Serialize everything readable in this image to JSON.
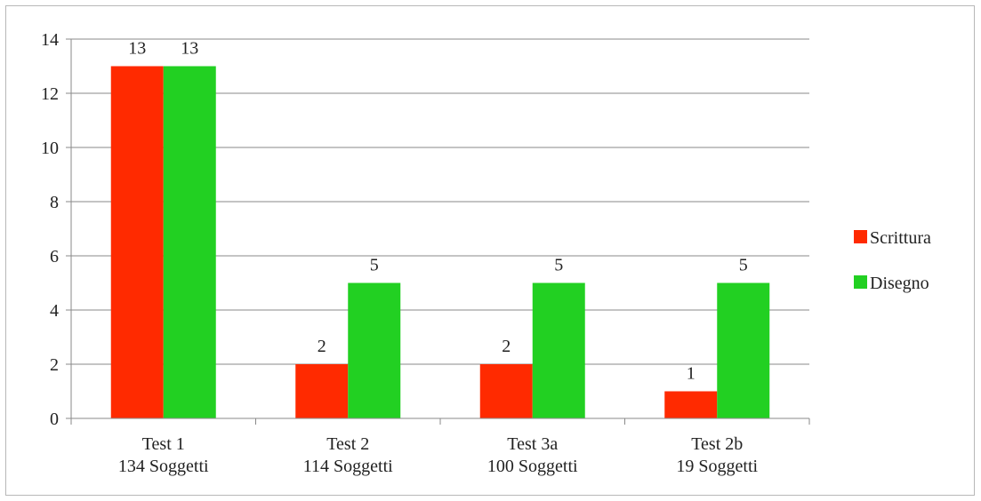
{
  "chart_data": {
    "type": "bar",
    "title": "",
    "xlabel": "",
    "ylabel": "",
    "ylim": [
      0,
      14
    ],
    "yticks": [
      0,
      2,
      4,
      6,
      8,
      10,
      12,
      14
    ],
    "grid": true,
    "legend_position": "right",
    "categories": [
      [
        "Test 1",
        "134 Soggetti"
      ],
      [
        "Test 2",
        "114 Soggetti"
      ],
      [
        "Test 3a",
        "100 Soggetti"
      ],
      [
        "Test 2b",
        "19 Soggetti"
      ]
    ],
    "series": [
      {
        "name": "Scrittura",
        "color": "#ff2a00",
        "values": [
          13,
          2,
          2,
          1
        ]
      },
      {
        "name": "Disegno",
        "color": "#22d022",
        "values": [
          13,
          5,
          5,
          5
        ]
      }
    ],
    "data_labels": true
  }
}
